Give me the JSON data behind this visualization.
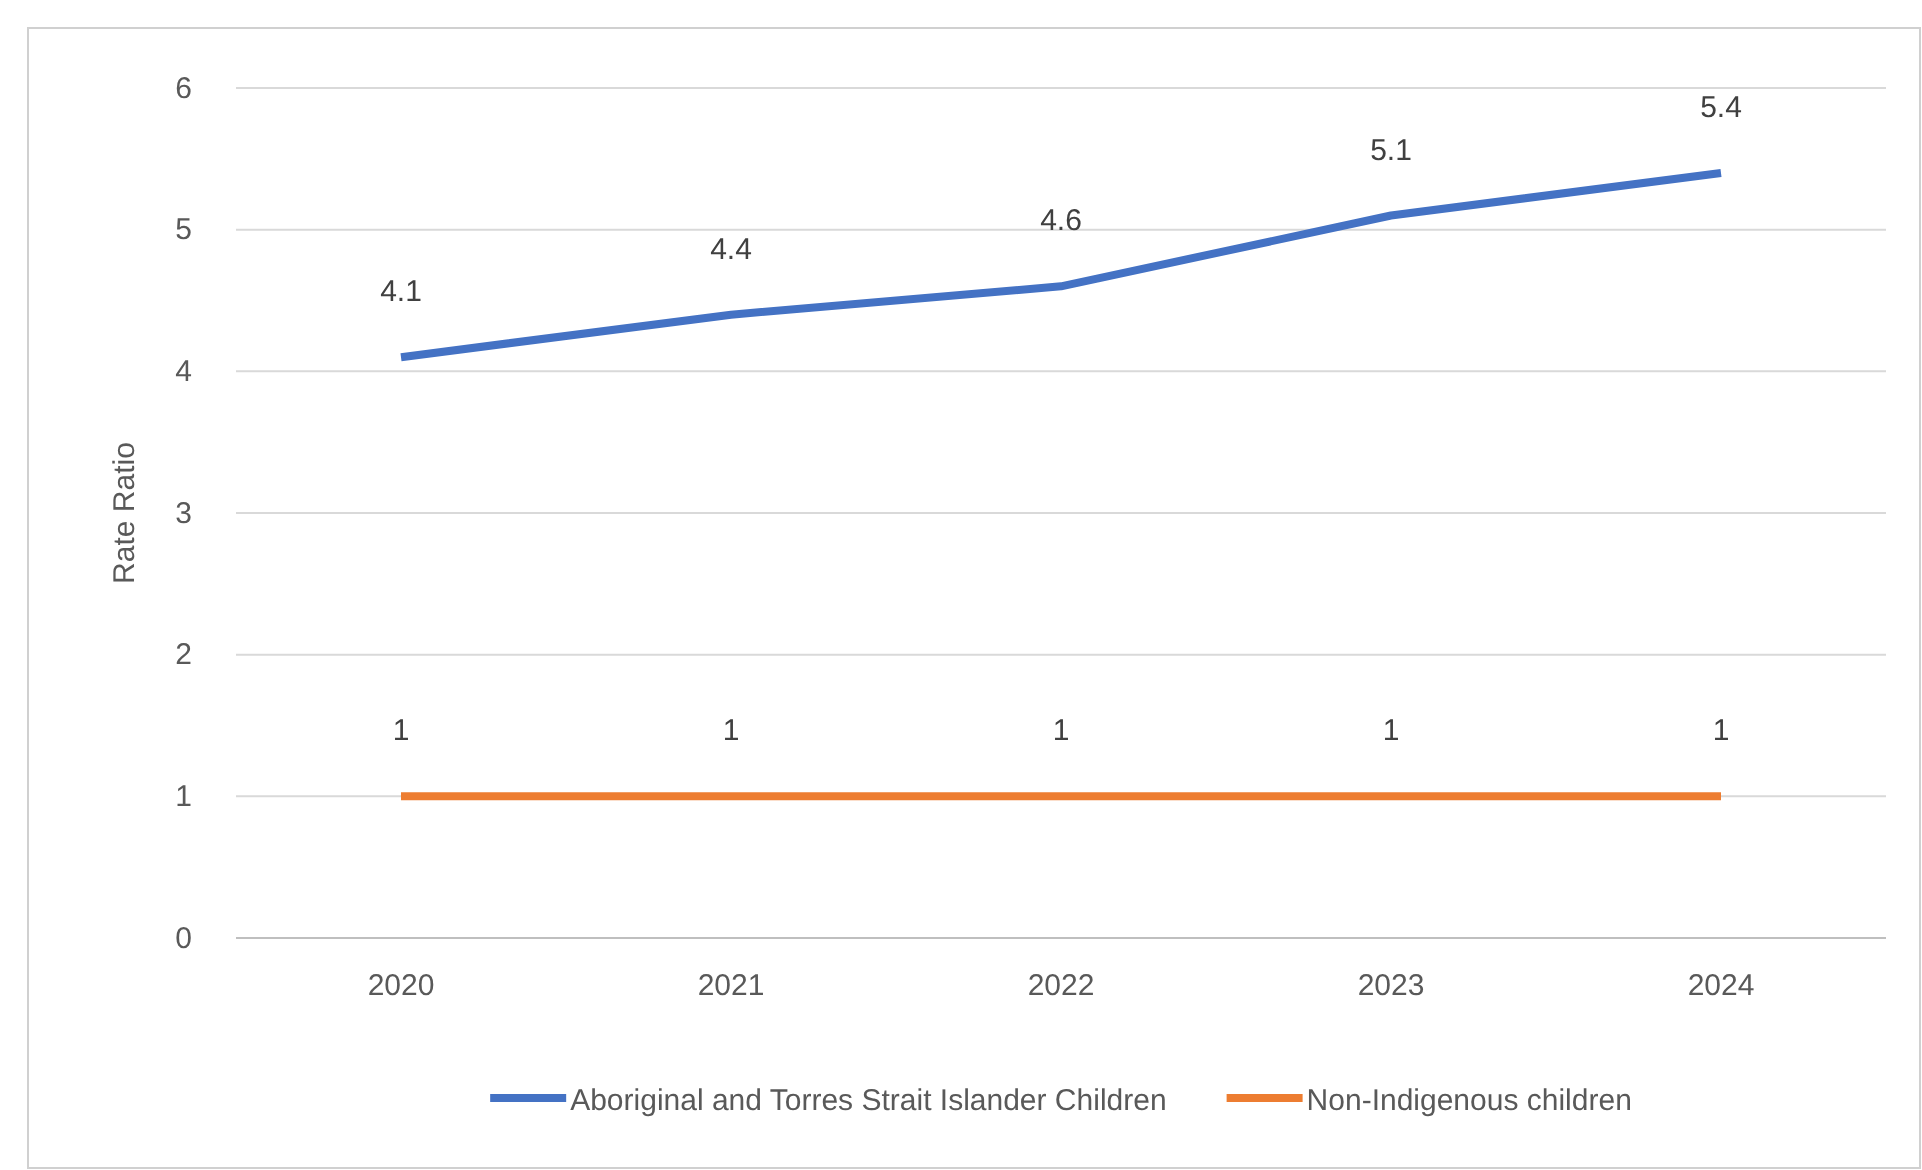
{
  "chart_data": {
    "type": "line",
    "ylabel": "Rate Ratio",
    "categories": [
      "2020",
      "2021",
      "2022",
      "2023",
      "2024"
    ],
    "series": [
      {
        "name": "Aboriginal and Torres Strait Islander Children",
        "color": "#4472c4",
        "values": [
          4.1,
          4.4,
          4.6,
          5.1,
          5.4
        ]
      },
      {
        "name": "Non-Indigenous children",
        "color": "#ed7d31",
        "values": [
          1,
          1,
          1,
          1,
          1
        ]
      }
    ],
    "ylim": [
      0,
      6
    ],
    "yticks": [
      0,
      1,
      2,
      3,
      4,
      5,
      6
    ],
    "grid": "y",
    "legend": "bottom",
    "data_labels": true,
    "marker": "none",
    "line_style": "solid"
  }
}
